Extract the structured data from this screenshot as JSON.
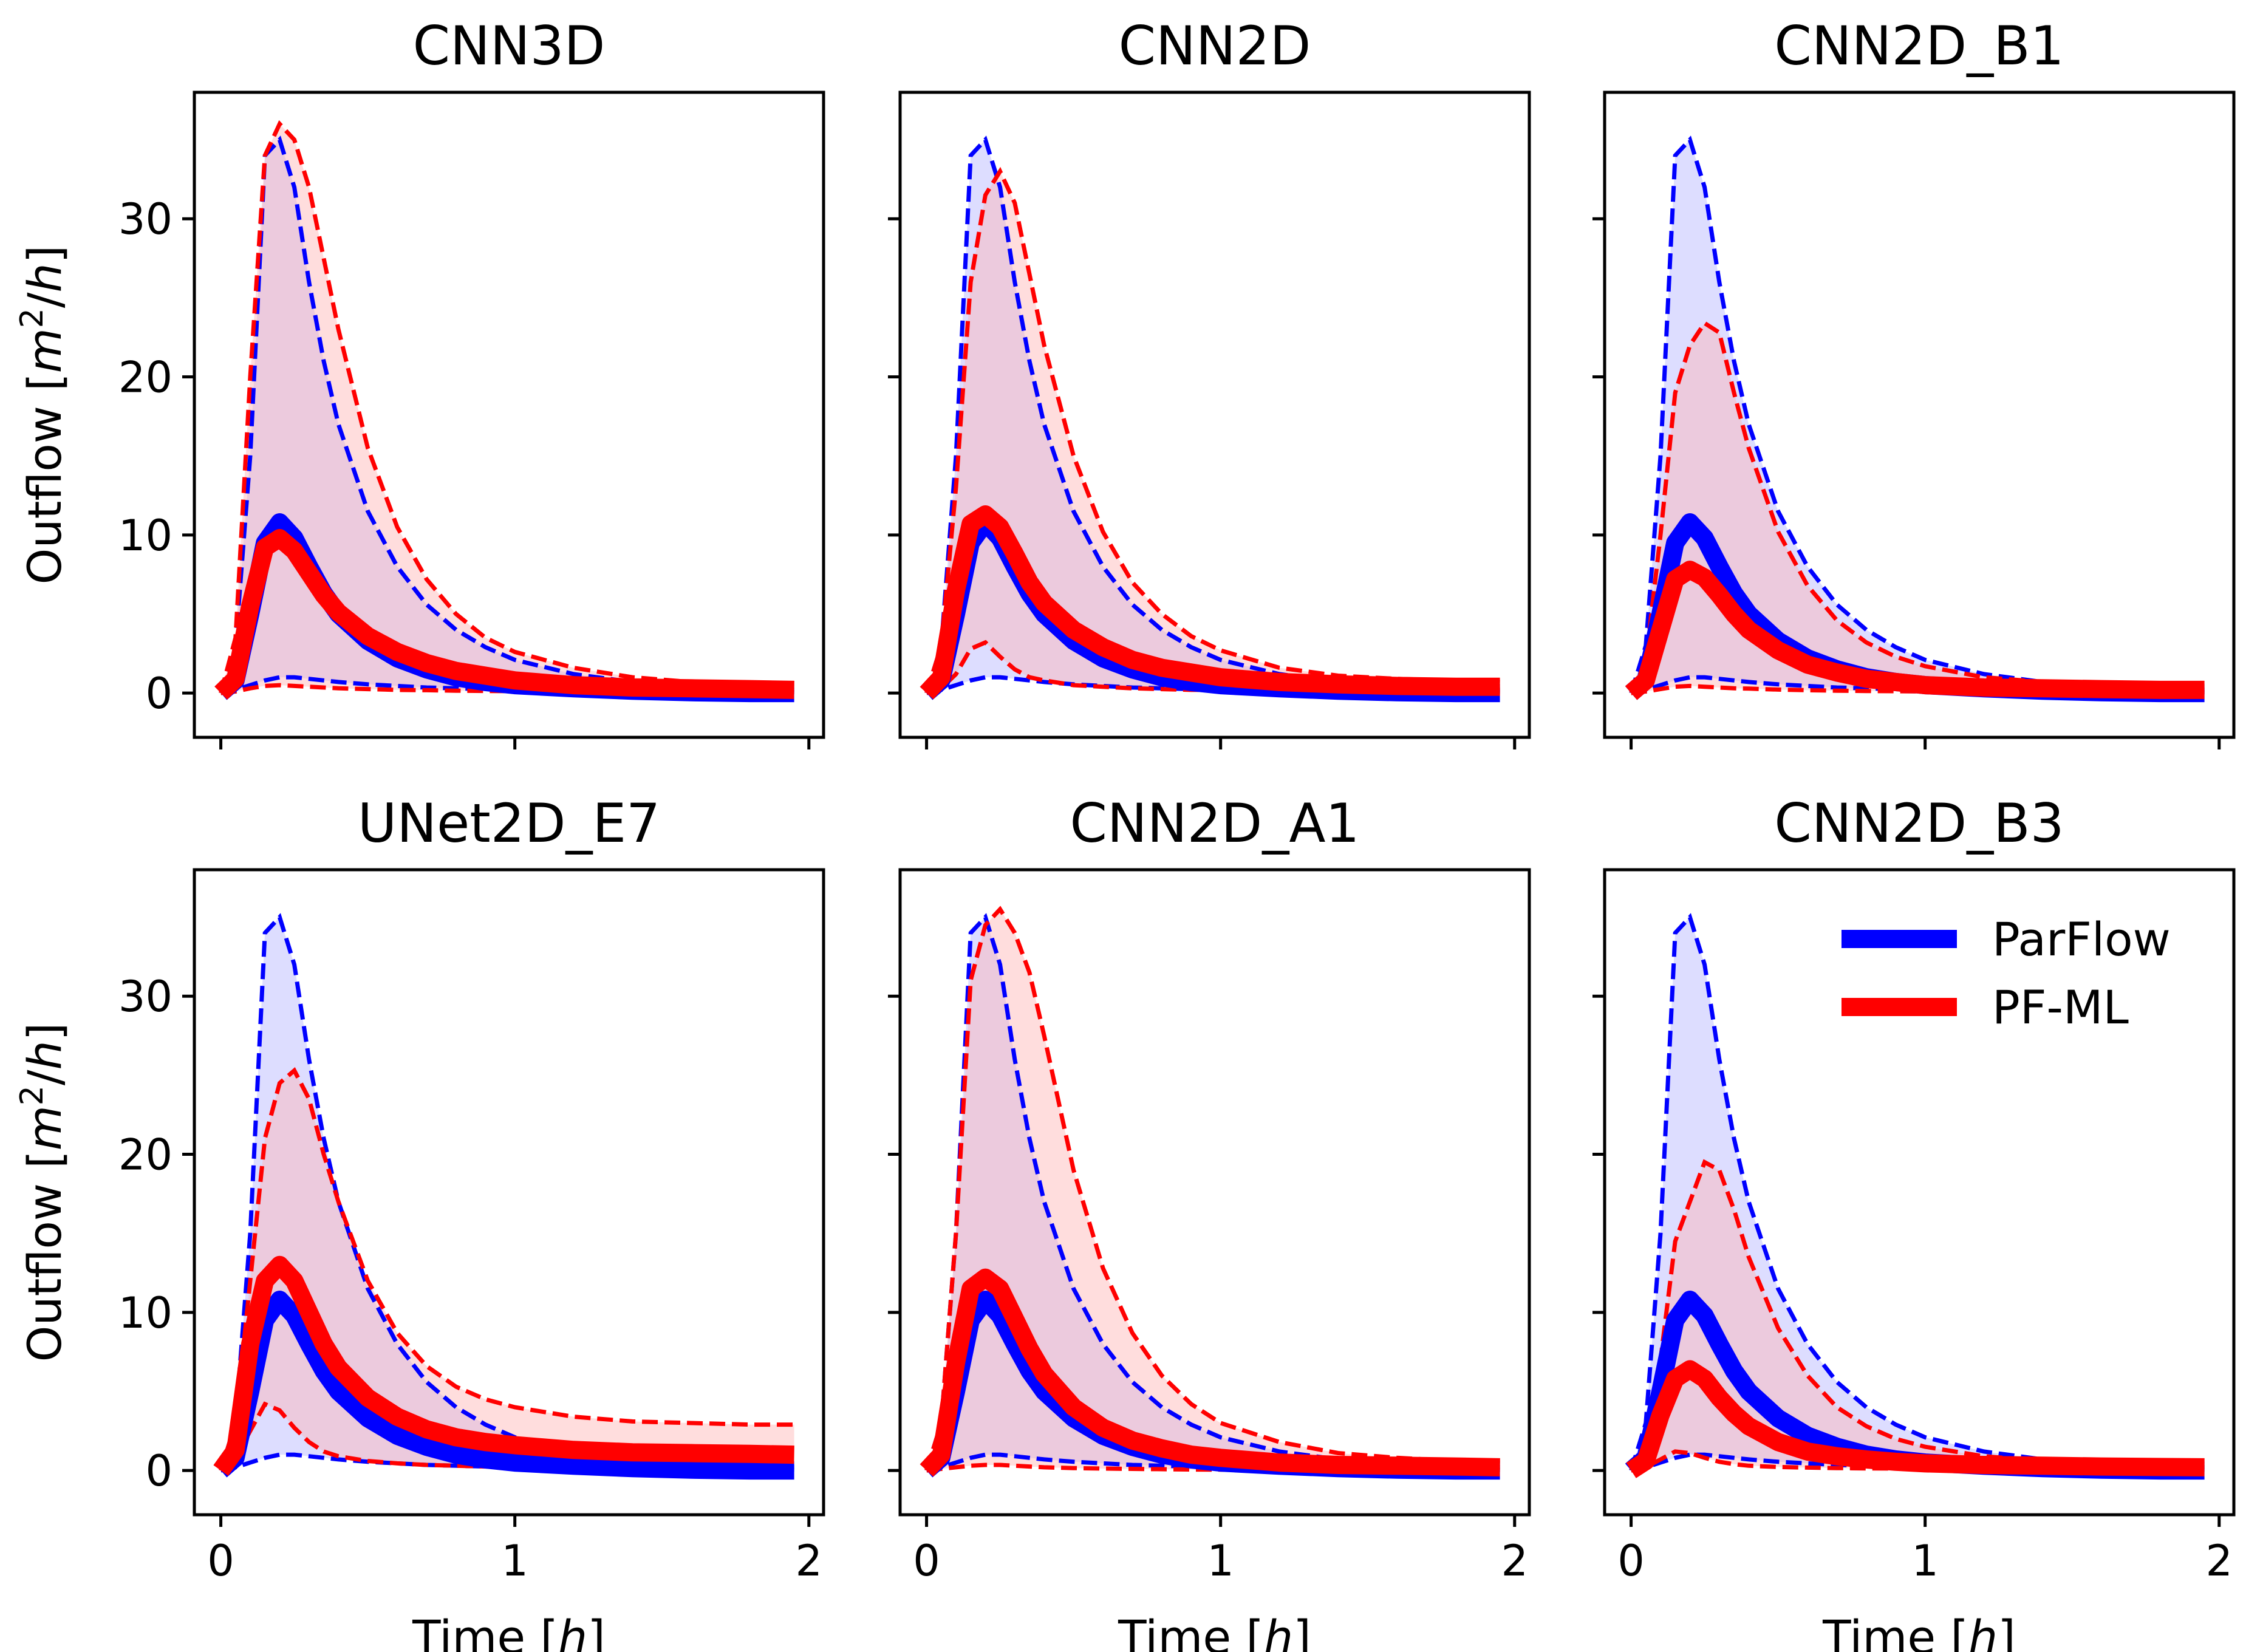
{
  "chart_data": {
    "type": "line",
    "colors": {
      "parflow": "#0000ff",
      "pfml": "#ff0000",
      "parflow_fill": "#b3b3ff",
      "pfml_fill": "#ffb3b3"
    },
    "xlabel_prefix": "Time [",
    "xlabel_var": "h",
    "xlabel_suffix": "]",
    "ylabel_prefix": "Outflow [",
    "ylabel_var": "m",
    "ylabel_sup": "2",
    "ylabel_mid": "/",
    "ylabel_var2": "h",
    "ylabel_suffix": "]",
    "xlim": [
      -0.09,
      2.05
    ],
    "ylim": [
      -2.8,
      38.0
    ],
    "xticks": [
      0,
      1,
      2
    ],
    "xtick_labels": [
      "0",
      "1",
      "2"
    ],
    "yticks": [
      0,
      10,
      20,
      30
    ],
    "ytick_labels": [
      "0",
      "10",
      "20",
      "30"
    ],
    "legend": {
      "placement": "top-right",
      "entries": [
        "ParFlow",
        "PF-ML"
      ]
    },
    "x": [
      0,
      0.05,
      0.1,
      0.15,
      0.2,
      0.25,
      0.3,
      0.35,
      0.4,
      0.5,
      0.6,
      0.7,
      0.8,
      0.9,
      1.0,
      1.2,
      1.4,
      1.6,
      1.8,
      1.95
    ],
    "parflow": {
      "name": "ParFlow",
      "mean": [
        0,
        0.8,
        5.0,
        9.5,
        10.8,
        9.8,
        8.0,
        6.3,
        5.0,
        3.3,
        2.2,
        1.5,
        1.0,
        0.7,
        0.5,
        0.3,
        0.15,
        0.05,
        0,
        0
      ],
      "upper": [
        0,
        3.0,
        15.0,
        34.0,
        35.0,
        32.0,
        26.0,
        21.0,
        17.0,
        11.5,
        8.0,
        5.6,
        4.0,
        2.9,
        2.1,
        1.2,
        0.7,
        0.4,
        0.25,
        0.2
      ],
      "lower": [
        0,
        0.2,
        0.5,
        0.8,
        1.0,
        1.0,
        0.9,
        0.8,
        0.7,
        0.55,
        0.45,
        0.35,
        0.3,
        0.25,
        0.2,
        0.15,
        0.1,
        0.08,
        0.06,
        0.05
      ]
    },
    "panels": [
      {
        "title": "CNN3D",
        "pfml": {
          "name": "PF-ML",
          "mean": [
            0,
            0.9,
            5.5,
            9.2,
            9.8,
            9.0,
            7.6,
            6.2,
            5.1,
            3.6,
            2.6,
            1.9,
            1.4,
            1.1,
            0.8,
            0.5,
            0.35,
            0.3,
            0.25,
            0.2
          ],
          "upper": [
            0,
            3.5,
            20.0,
            34.0,
            36.0,
            35.0,
            32.0,
            27.5,
            23.0,
            15.5,
            10.5,
            7.2,
            5.0,
            3.5,
            2.6,
            1.6,
            1.0,
            0.7,
            0.5,
            0.4
          ],
          "lower": [
            0,
            0.1,
            0.3,
            0.45,
            0.5,
            0.45,
            0.4,
            0.35,
            0.3,
            0.25,
            0.2,
            0.18,
            0.15,
            0.13,
            0.12,
            0.1,
            0.08,
            0.06,
            0.05,
            0.05
          ]
        }
      },
      {
        "title": "CNN2D",
        "pfml": {
          "name": "PF-ML",
          "mean": [
            0,
            1.0,
            6.5,
            10.7,
            11.3,
            10.5,
            8.8,
            7.0,
            5.7,
            4.0,
            2.9,
            2.1,
            1.6,
            1.3,
            1.0,
            0.7,
            0.55,
            0.45,
            0.4,
            0.4
          ],
          "upper": [
            0,
            3.0,
            13.0,
            26.0,
            31.5,
            33.0,
            31.0,
            26.5,
            22.0,
            15.0,
            10.2,
            7.0,
            5.0,
            3.6,
            2.7,
            1.6,
            1.1,
            0.9,
            0.8,
            0.7
          ],
          "lower": [
            0,
            0.3,
            1.2,
            2.8,
            3.2,
            2.3,
            1.5,
            1.0,
            0.8,
            0.5,
            0.4,
            0.3,
            0.25,
            0.2,
            0.2,
            0.15,
            0.15,
            0.12,
            0.12,
            0.12
          ]
        }
      },
      {
        "title": "CNN2D_B1",
        "pfml": {
          "name": "PF-ML",
          "mean": [
            0,
            0.8,
            4.0,
            7.2,
            7.8,
            7.3,
            6.2,
            5.0,
            4.0,
            2.7,
            1.8,
            1.3,
            0.9,
            0.7,
            0.5,
            0.35,
            0.3,
            0.25,
            0.2,
            0.2
          ],
          "upper": [
            0,
            2.0,
            10.0,
            19.0,
            22.0,
            23.4,
            22.8,
            19.0,
            15.5,
            10.2,
            6.8,
            4.6,
            3.2,
            2.3,
            1.7,
            1.0,
            0.7,
            0.55,
            0.5,
            0.45
          ],
          "lower": [
            0,
            0.1,
            0.25,
            0.4,
            0.45,
            0.4,
            0.35,
            0.3,
            0.28,
            0.22,
            0.18,
            0.15,
            0.13,
            0.12,
            0.1,
            0.08,
            0.07,
            0.06,
            0.05,
            0.05
          ]
        }
      },
      {
        "title": "UNet2D_E7",
        "pfml": {
          "name": "PF-ML",
          "mean": [
            0,
            1.3,
            8.0,
            12.0,
            13.0,
            12.0,
            10.0,
            8.0,
            6.5,
            4.6,
            3.4,
            2.6,
            2.1,
            1.8,
            1.6,
            1.3,
            1.15,
            1.1,
            1.05,
            1.0
          ],
          "upper": [
            0,
            3.0,
            12.0,
            21.0,
            24.5,
            25.3,
            23.5,
            20.0,
            17.0,
            12.0,
            8.7,
            6.6,
            5.3,
            4.5,
            4.0,
            3.4,
            3.1,
            3.0,
            2.9,
            2.9
          ],
          "lower": [
            0,
            0.8,
            2.5,
            4.2,
            3.8,
            2.7,
            1.8,
            1.2,
            0.9,
            0.6,
            0.45,
            0.35,
            0.3,
            0.25,
            0.2,
            0.15,
            0.12,
            0.1,
            0.1,
            0.1
          ]
        }
      },
      {
        "title": "CNN2D_A1",
        "pfml": {
          "name": "PF-ML",
          "mean": [
            0,
            1.0,
            6.8,
            11.5,
            12.2,
            11.5,
            9.6,
            7.7,
            6.1,
            4.0,
            2.7,
            1.9,
            1.4,
            1.0,
            0.8,
            0.5,
            0.35,
            0.3,
            0.25,
            0.2
          ],
          "upper": [
            0,
            3.0,
            15.0,
            31.0,
            34.5,
            35.5,
            34.0,
            31.5,
            27.5,
            19.0,
            12.8,
            8.7,
            6.0,
            4.2,
            3.0,
            1.8,
            1.1,
            0.8,
            0.6,
            0.5
          ],
          "lower": [
            0,
            0.1,
            0.2,
            0.3,
            0.35,
            0.35,
            0.3,
            0.25,
            0.2,
            0.15,
            0.12,
            0.1,
            0.08,
            0.06,
            0.05,
            0.04,
            0.03,
            0.03,
            0.03,
            0.03
          ]
        }
      },
      {
        "title": "CNN2D_B3",
        "pfml": {
          "name": "PF-ML",
          "mean": [
            0,
            0.6,
            3.5,
            5.8,
            6.4,
            5.8,
            4.6,
            3.6,
            2.8,
            1.8,
            1.2,
            0.9,
            0.7,
            0.55,
            0.45,
            0.35,
            0.3,
            0.25,
            0.22,
            0.2
          ],
          "upper": [
            0,
            1.5,
            7.0,
            14.5,
            17.0,
            19.5,
            19.0,
            16.5,
            13.5,
            9.0,
            6.0,
            4.0,
            2.8,
            2.0,
            1.5,
            0.9,
            0.6,
            0.5,
            0.45,
            0.4
          ],
          "lower": [
            0,
            0.2,
            0.7,
            1.2,
            1.1,
            0.8,
            0.55,
            0.4,
            0.3,
            0.22,
            0.18,
            0.15,
            0.13,
            0.12,
            0.1,
            0.08,
            0.07,
            0.06,
            0.05,
            0.05
          ]
        }
      }
    ]
  }
}
